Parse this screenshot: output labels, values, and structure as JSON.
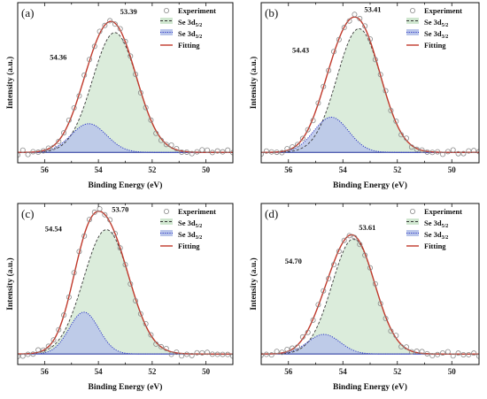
{
  "colors": {
    "experiment": "#8a8a8a",
    "d52_line": "#3a3a3a",
    "d52_fill": "#cfe6cf",
    "d32_line": "#2b35c4",
    "d32_fill": "#b9c5ea",
    "fitting": "#c0392b",
    "baseline": "#1f2f9a"
  },
  "legend": {
    "experiment": "Experiment",
    "d52_main": "Se 3d",
    "d52_sub": "5/2",
    "d32_main": "Se 3d",
    "d32_sub": "3/2",
    "fitting": "Fitting"
  },
  "chart_data": [
    {
      "type": "line",
      "panel": "(a)",
      "xlabel": "Binding Energy (eV)",
      "ylabel": "Intensity (a.u.)",
      "xlim": [
        57,
        49
      ],
      "x_ticks": [
        56,
        54,
        52,
        50
      ],
      "ylim": [
        -0.08,
        1.15
      ],
      "peaks": [
        {
          "name": "Se 3d5/2",
          "center": 53.39,
          "amplitude": 0.92,
          "fwhm": 1.95,
          "label": "53.39"
        },
        {
          "name": "Se 3d3/2",
          "center": 54.36,
          "amplitude": 0.22,
          "fwhm": 1.55,
          "label": "54.36"
        }
      ]
    },
    {
      "type": "line",
      "panel": "(b)",
      "xlabel": "Binding Energy (eV)",
      "ylabel": "Intensity (a.u.)",
      "xlim": [
        57,
        49
      ],
      "x_ticks": [
        56,
        54,
        52,
        50
      ],
      "ylim": [
        -0.08,
        1.15
      ],
      "peaks": [
        {
          "name": "Se 3d5/2",
          "center": 53.41,
          "amplitude": 0.95,
          "fwhm": 1.9,
          "label": "53.41"
        },
        {
          "name": "Se 3d3/2",
          "center": 54.43,
          "amplitude": 0.27,
          "fwhm": 1.5,
          "label": "54.43"
        }
      ]
    },
    {
      "type": "line",
      "panel": "(c)",
      "xlabel": "Binding Energy (eV)",
      "ylabel": "Intensity (a.u.)",
      "xlim": [
        57,
        49
      ],
      "x_ticks": [
        56,
        54,
        52,
        50
      ],
      "ylim": [
        -0.08,
        1.15
      ],
      "peaks": [
        {
          "name": "Se 3d5/2",
          "center": 53.7,
          "amplitude": 0.95,
          "fwhm": 2.0,
          "label": "53.70"
        },
        {
          "name": "Se 3d3/2",
          "center": 54.54,
          "amplitude": 0.32,
          "fwhm": 1.3,
          "label": "54.54"
        }
      ]
    },
    {
      "type": "line",
      "panel": "(d)",
      "xlabel": "Binding Energy (eV)",
      "ylabel": "Intensity (a.u.)",
      "xlim": [
        57,
        49
      ],
      "x_ticks": [
        56,
        54,
        52,
        50
      ],
      "ylim": [
        -0.08,
        1.15
      ],
      "peaks": [
        {
          "name": "Se 3d5/2",
          "center": 53.61,
          "amplitude": 0.88,
          "fwhm": 1.85,
          "label": "53.61"
        },
        {
          "name": "Se 3d3/2",
          "center": 54.7,
          "amplitude": 0.15,
          "fwhm": 1.4,
          "label": "54.70"
        }
      ]
    }
  ]
}
